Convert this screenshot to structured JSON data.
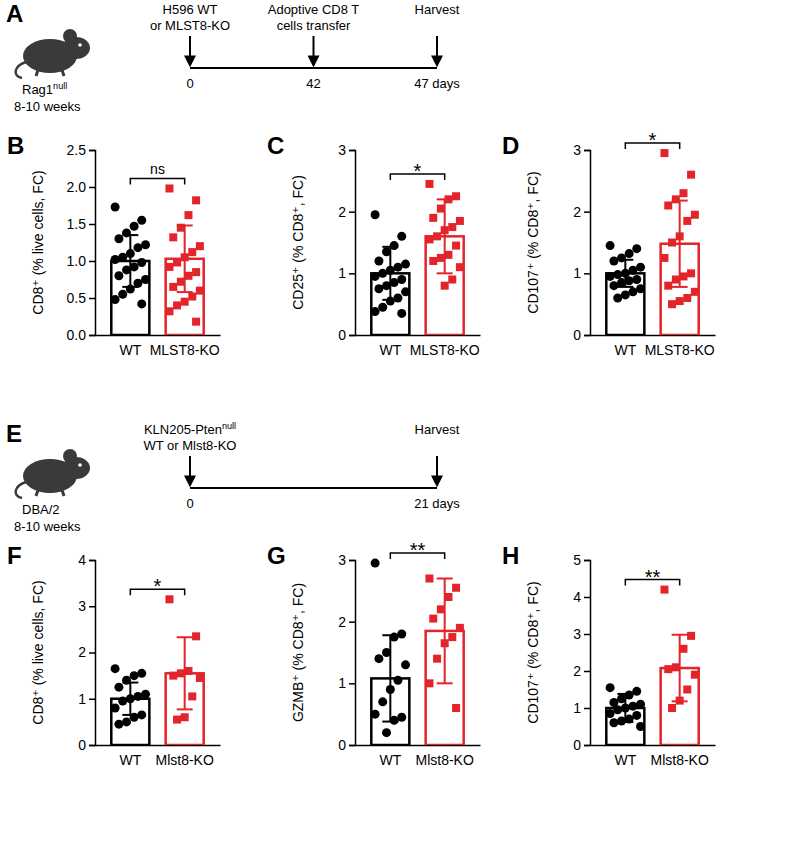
{
  "chart_data": [
    {
      "type": "timeline",
      "panel": "A",
      "host": {
        "text": "Rag1",
        "sup": "null"
      },
      "age": "8-10 weeks",
      "events": [
        {
          "day": 0,
          "text": [
            "H596 WT",
            "or MLST8-KO"
          ]
        },
        {
          "day": 42,
          "text": [
            "Adoptive CD8 T",
            "cells transfer"
          ]
        },
        {
          "day": 47,
          "day_label": "47 days",
          "text": [
            "Harvest"
          ]
        }
      ]
    },
    {
      "type": "bar",
      "panel": "B",
      "ylabel": "CD8⁺ (% live cells, FC)",
      "ylim": [
        0,
        2.5
      ],
      "yticks": [
        {
          "value": 0,
          "label": "0.0"
        },
        {
          "value": 0.5,
          "label": "0.5"
        },
        {
          "value": 1,
          "label": "1.0"
        },
        {
          "value": 1.5,
          "label": "1.5"
        },
        {
          "value": 2,
          "label": "2.0"
        },
        {
          "value": 2.5,
          "label": "2.5"
        }
      ],
      "annotation": "ns",
      "series": [
        {
          "name": "WT",
          "color": "#000000",
          "marker": "circle",
          "values": [
            1.0
          ],
          "errors": [
            0.35
          ],
          "points": [
            1.73,
            1.55,
            1.47,
            1.38,
            1.3,
            1.22,
            1.18,
            1.1,
            1.05,
            1.02,
            0.98,
            0.92,
            0.88,
            0.8,
            0.75,
            0.7,
            0.62,
            0.55,
            0.48,
            0.42
          ]
        },
        {
          "name": "MLST8-KO",
          "color": "#e3242b",
          "marker": "square",
          "values": [
            1.03
          ],
          "errors": [
            0.45
          ],
          "points": [
            1.98,
            1.82,
            1.62,
            1.45,
            1.32,
            1.2,
            1.12,
            1.05,
            0.98,
            0.92,
            0.85,
            0.8,
            0.72,
            0.65,
            0.6,
            0.52,
            0.45,
            0.4,
            0.32,
            0.18
          ]
        }
      ]
    },
    {
      "type": "bar",
      "panel": "C",
      "ylabel": "CD25⁺ (% CD8⁺, FC)",
      "ylim": [
        0,
        3
      ],
      "yticks": [
        0,
        1,
        2,
        3
      ],
      "annotation": "*",
      "series": [
        {
          "name": "WT",
          "color": "#000000",
          "marker": "circle",
          "values": [
            1.0
          ],
          "errors": [
            0.43
          ],
          "points": [
            1.95,
            1.6,
            1.45,
            1.35,
            1.2,
            1.15,
            1.1,
            1.05,
            1.0,
            0.95,
            0.9,
            0.85,
            0.8,
            0.75,
            0.7,
            0.6,
            0.55,
            0.45,
            0.38,
            0.35
          ]
        },
        {
          "name": "MLST8-KO",
          "color": "#e3242b",
          "marker": "square",
          "values": [
            1.6
          ],
          "errors": [
            0.6
          ],
          "points": [
            2.45,
            2.25,
            2.2,
            2.05,
            1.9,
            1.85,
            1.75,
            1.7,
            1.6,
            1.55,
            1.45,
            1.3,
            1.25,
            1.2,
            1.1,
            0.9,
            0.8
          ]
        }
      ]
    },
    {
      "type": "bar",
      "panel": "D",
      "ylabel": "CD107⁺ (% CD8⁺, FC)",
      "ylim": [
        0,
        3
      ],
      "yticks": [
        0,
        1,
        2,
        3
      ],
      "annotation": "*",
      "series": [
        {
          "name": "WT",
          "color": "#000000",
          "marker": "circle",
          "values": [
            1.0
          ],
          "errors": [
            0.22
          ],
          "points": [
            1.45,
            1.4,
            1.32,
            1.25,
            1.2,
            1.1,
            1.05,
            1.0,
            0.98,
            0.95,
            0.9,
            0.88,
            0.85,
            0.8,
            0.75,
            0.7,
            0.65,
            0.6
          ]
        },
        {
          "name": "MLST8-KO",
          "color": "#e3242b",
          "marker": "square",
          "values": [
            1.48
          ],
          "errors": [
            0.7
          ],
          "points": [
            2.95,
            2.6,
            2.3,
            2.2,
            2.1,
            1.95,
            1.85,
            1.6,
            1.5,
            1.25,
            1.0,
            0.95,
            0.9,
            0.8,
            0.7,
            0.6,
            0.55,
            0.5
          ]
        }
      ]
    },
    {
      "type": "timeline",
      "panel": "E",
      "host": "DBA/2",
      "age": "8-10 weeks",
      "events": [
        {
          "day": 0,
          "text": [
            {
              "text": "KLN205-Pten",
              "sup": "null"
            },
            "WT or Mlst8-KO"
          ]
        },
        {
          "day": 21,
          "day_label": "21 days",
          "text": [
            "Harvest"
          ]
        }
      ]
    },
    {
      "type": "bar",
      "panel": "F",
      "ylabel": "CD8⁺ (% live cells, FC)",
      "ylim": [
        0,
        4
      ],
      "yticks": [
        0,
        1,
        2,
        3,
        4
      ],
      "annotation": "*",
      "series": [
        {
          "name": "WT",
          "color": "#000000",
          "marker": "circle",
          "values": [
            1.0
          ],
          "errors": [
            0.35
          ],
          "points": [
            1.65,
            1.55,
            1.5,
            1.4,
            1.25,
            1.1,
            1.05,
            1.0,
            0.95,
            0.8,
            0.65,
            0.6,
            0.5,
            0.45
          ]
        },
        {
          "name": "Mlst8-KO",
          "color": "#e3242b",
          "marker": "square",
          "values": [
            1.55
          ],
          "errors": [
            0.78
          ],
          "points": [
            3.15,
            2.35,
            1.6,
            1.55,
            1.5,
            1.45,
            1.05,
            0.6,
            0.55
          ]
        }
      ]
    },
    {
      "type": "bar",
      "panel": "G",
      "ylabel": "GZMB⁺ (% CD8⁺, FC)",
      "ylim": [
        0,
        3
      ],
      "yticks": [
        0,
        1,
        2,
        3
      ],
      "annotation": "**",
      "series": [
        {
          "name": "WT",
          "color": "#000000",
          "marker": "circle",
          "values": [
            1.08
          ],
          "errors": [
            0.7
          ],
          "points": [
            2.95,
            1.8,
            1.75,
            1.5,
            1.4,
            1.3,
            1.05,
            0.9,
            0.7,
            0.5,
            0.45,
            0.4,
            0.2
          ]
        },
        {
          "name": "Mlst8-KO",
          "color": "#e3242b",
          "marker": "square",
          "values": [
            1.85
          ],
          "errors": [
            0.85
          ],
          "points": [
            2.7,
            2.55,
            2.4,
            2.2,
            2.05,
            1.9,
            1.75,
            1.65,
            1.4,
            1.0,
            0.6
          ]
        }
      ]
    },
    {
      "type": "bar",
      "panel": "H",
      "ylabel": "CD107⁺ (% CD8⁺, FC)",
      "ylim": [
        0,
        5
      ],
      "yticks": [
        0,
        1,
        2,
        3,
        4,
        5
      ],
      "annotation": "**",
      "series": [
        {
          "name": "WT",
          "color": "#000000",
          "marker": "circle",
          "values": [
            1.0
          ],
          "errors": [
            0.38
          ],
          "points": [
            1.55,
            1.45,
            1.35,
            1.25,
            1.15,
            1.1,
            1.05,
            1.0,
            0.95,
            0.85,
            0.8,
            0.7,
            0.65,
            0.6,
            0.5
          ]
        },
        {
          "name": "Mlst8-KO",
          "color": "#e3242b",
          "marker": "square",
          "values": [
            2.08
          ],
          "errors": [
            0.9
          ],
          "points": [
            4.2,
            2.95,
            2.6,
            2.1,
            2.05,
            1.9,
            1.5,
            1.2,
            1.0
          ]
        }
      ]
    }
  ]
}
